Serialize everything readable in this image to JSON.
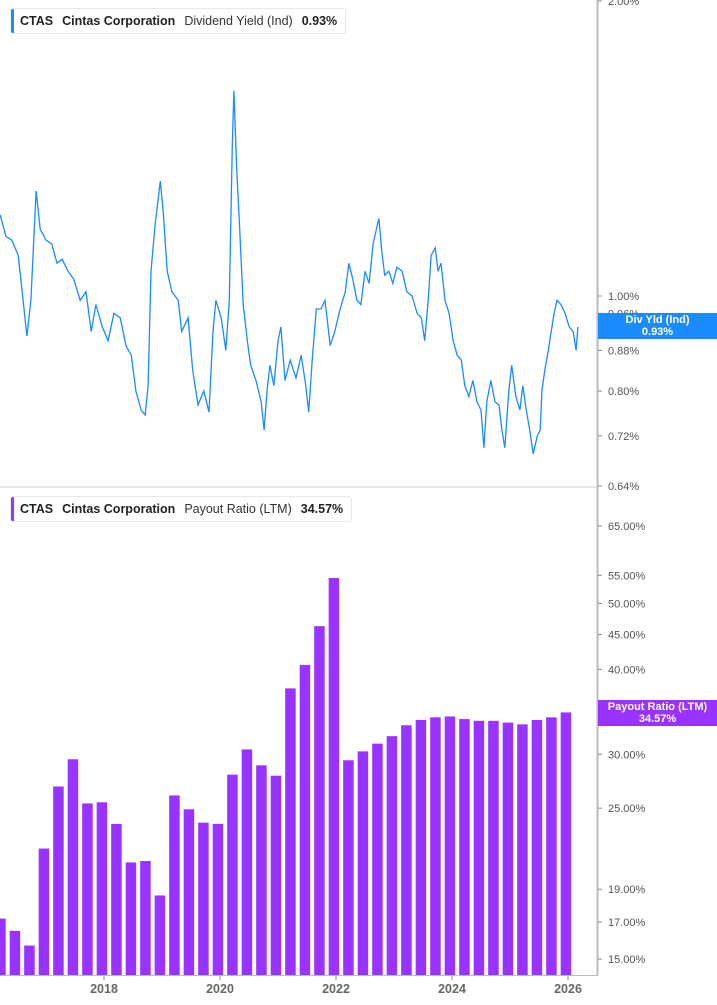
{
  "colors": {
    "yield": "#1a8cff",
    "payout": "#9933ff",
    "axis": "#bbbbbb"
  },
  "top_legend": {
    "ticker": "CTAS",
    "company": "Cintas Corporation",
    "metric": "Dividend Yield (Ind)",
    "value": "0.93%"
  },
  "bottom_legend": {
    "ticker": "CTAS",
    "company": "Cintas Corporation",
    "metric": "Payout Ratio (LTM)",
    "value": "34.57%"
  },
  "top_tag": {
    "label": "Div Yld (Ind)",
    "value": "0.93%"
  },
  "bottom_tag": {
    "label": "Payout Ratio (LTM)",
    "value": "34.57%"
  },
  "chart_data": [
    {
      "type": "line",
      "scale": "log",
      "ylim": [
        0.64,
        2.0
      ],
      "yticks": [
        "2.00%",
        "1.00%",
        "0.96%",
        "0.88%",
        "0.80%",
        "0.72%",
        "0.64%"
      ],
      "ytick_values": [
        2.0,
        1.0,
        0.96,
        0.88,
        0.8,
        0.72,
        0.64
      ],
      "x": [
        2016.21,
        2016.31,
        2016.41,
        2016.52,
        2016.59,
        2016.67,
        2016.74,
        2016.83,
        2016.9,
        2017.0,
        2017.1,
        2017.19,
        2017.28,
        2017.38,
        2017.48,
        2017.59,
        2017.69,
        2017.78,
        2017.86,
        2017.97,
        2018.07,
        2018.17,
        2018.28,
        2018.38,
        2018.47,
        2018.55,
        2018.64,
        2018.71,
        2018.76,
        2018.81,
        2018.88,
        2018.97,
        2019.02,
        2019.09,
        2019.17,
        2019.28,
        2019.34,
        2019.45,
        2019.53,
        2019.62,
        2019.72,
        2019.81,
        2019.88,
        2019.93,
        2020.02,
        2020.1,
        2020.16,
        2020.21,
        2020.24,
        2020.29,
        2020.34,
        2020.4,
        2020.47,
        2020.53,
        2020.62,
        2020.71,
        2020.76,
        2020.81,
        2020.86,
        2020.93,
        2021.0,
        2021.05,
        2021.12,
        2021.21,
        2021.31,
        2021.4,
        2021.48,
        2021.53,
        2021.59,
        2021.66,
        2021.74,
        2021.81,
        2021.9,
        2021.98,
        2022.07,
        2022.16,
        2022.22,
        2022.29,
        2022.36,
        2022.43,
        2022.5,
        2022.57,
        2022.64,
        2022.71,
        2022.74,
        2022.79,
        2022.84,
        2022.91,
        2022.98,
        2023.05,
        2023.14,
        2023.22,
        2023.31,
        2023.4,
        2023.47,
        2023.53,
        2023.59,
        2023.64,
        2023.71,
        2023.76,
        2023.81,
        2023.88,
        2023.95,
        2024.02,
        2024.09,
        2024.16,
        2024.22,
        2024.29,
        2024.36,
        2024.43,
        2024.5,
        2024.55,
        2024.6,
        2024.67,
        2024.74,
        2024.81,
        2024.86,
        2024.91,
        2024.98,
        2025.03,
        2025.1,
        2025.17,
        2025.22,
        2025.28,
        2025.34,
        2025.4,
        2025.47,
        2025.52,
        2025.55,
        2025.6,
        2025.66,
        2025.71,
        2025.76,
        2025.81,
        2025.88,
        2025.95,
        2026.02,
        2026.09,
        2026.14,
        2026.17
      ],
      "y": [
        1.21,
        1.15,
        1.14,
        1.1,
        1.01,
        0.91,
        0.99,
        1.28,
        1.17,
        1.14,
        1.13,
        1.08,
        1.09,
        1.06,
        1.04,
        0.99,
        1.01,
        0.92,
        0.98,
        0.93,
        0.9,
        0.96,
        0.95,
        0.89,
        0.87,
        0.8,
        0.765,
        0.756,
        0.81,
        1.06,
        1.18,
        1.31,
        1.22,
        1.06,
        1.01,
        0.99,
        0.92,
        0.95,
        0.84,
        0.774,
        0.8,
        0.761,
        0.92,
        0.99,
        0.95,
        0.88,
        0.99,
        1.41,
        1.62,
        1.34,
        1.17,
        0.98,
        0.9,
        0.85,
        0.82,
        0.78,
        0.73,
        0.8,
        0.85,
        0.81,
        0.9,
        0.93,
        0.82,
        0.86,
        0.825,
        0.87,
        0.81,
        0.761,
        0.86,
        0.97,
        0.97,
        0.99,
        0.89,
        0.92,
        0.97,
        1.01,
        1.08,
        1.04,
        0.99,
        0.98,
        1.06,
        1.03,
        1.13,
        1.18,
        1.2,
        1.11,
        1.05,
        1.06,
        1.03,
        1.07,
        1.06,
        1.01,
        1.0,
        0.96,
        0.95,
        0.9,
        0.99,
        1.1,
        1.12,
        1.06,
        1.08,
        0.99,
        0.96,
        0.9,
        0.87,
        0.86,
        0.81,
        0.79,
        0.82,
        0.78,
        0.765,
        0.7,
        0.78,
        0.82,
        0.78,
        0.774,
        0.73,
        0.7,
        0.8,
        0.85,
        0.79,
        0.765,
        0.81,
        0.765,
        0.73,
        0.69,
        0.72,
        0.73,
        0.8,
        0.84,
        0.88,
        0.92,
        0.96,
        0.99,
        0.98,
        0.96,
        0.93,
        0.92,
        0.88,
        0.93
      ]
    },
    {
      "type": "bar",
      "scale": "log",
      "ylim": [
        15,
        65
      ],
      "yticks": [
        "65.00%",
        "55.00%",
        "50.00%",
        "45.00%",
        "40.00%",
        "30.00%",
        "25.00%",
        "19.00%",
        "17.00%",
        "15.00%"
      ],
      "ytick_values": [
        65,
        55,
        50,
        45,
        40,
        30,
        25,
        19,
        17,
        15
      ],
      "xticks": [
        "2018",
        "2020",
        "2022",
        "2024",
        "2026"
      ],
      "xtick_values": [
        2018,
        2020,
        2022,
        2024,
        2026
      ],
      "x": [
        2016.21,
        2016.46,
        2016.71,
        2016.96,
        2017.21,
        2017.46,
        2017.71,
        2017.96,
        2018.21,
        2018.46,
        2018.71,
        2018.96,
        2019.21,
        2019.46,
        2019.71,
        2019.96,
        2020.21,
        2020.46,
        2020.71,
        2020.96,
        2021.21,
        2021.46,
        2021.71,
        2021.96,
        2022.21,
        2022.46,
        2022.71,
        2022.96,
        2023.21,
        2023.46,
        2023.71,
        2023.96,
        2024.21,
        2024.46,
        2024.71,
        2024.96,
        2025.21,
        2025.46,
        2025.71,
        2025.96
      ],
      "values": [
        17.2,
        16.5,
        15.7,
        21.8,
        26.9,
        29.5,
        25.4,
        25.5,
        23.7,
        20.8,
        20.9,
        18.6,
        26.1,
        24.9,
        23.8,
        23.7,
        28.0,
        30.5,
        28.9,
        27.9,
        37.5,
        40.6,
        46.3,
        54.5,
        29.4,
        30.3,
        31.1,
        31.9,
        33.1,
        33.7,
        34.0,
        34.1,
        33.8,
        33.6,
        33.6,
        33.4,
        33.2,
        33.7,
        34.0,
        34.57
      ]
    }
  ]
}
